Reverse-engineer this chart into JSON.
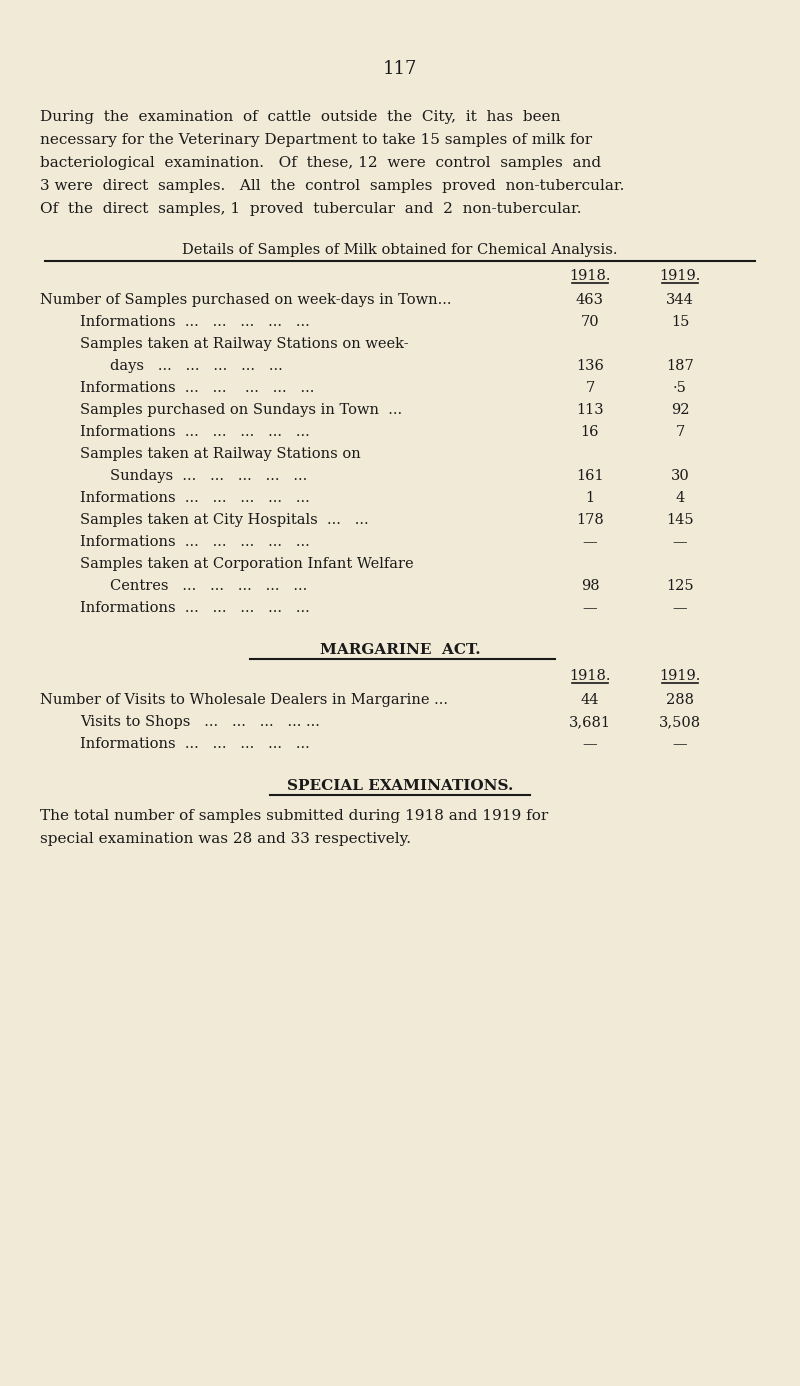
{
  "bg_color": "#f0ead6",
  "text_color": "#1a1a1a",
  "page_number": "117",
  "intro_text": [
    "During  the  examination  of  cattle  outside  the  City,  it  has  been",
    "necessary for the Veterinary Department to take 15 samples of milk for",
    "bacteriological  examination.   Of  these, 12  were  control  samples  and",
    "3 were  direct  samples.   All  the  control  samples  proved  non-tubercular.",
    "Of  the  direct  samples, 1  proved  tubercular  and  2  non-tubercular."
  ],
  "table1_title": "Details of Samples of Milk obtained for Chemical Analysis.",
  "table1_col_headers": [
    "1918.",
    "1919."
  ],
  "table1_rows": [
    {
      "label": "Number of Samples purchased on week-days in Town...",
      "indent": 0,
      "v1918": "463",
      "v1919": "344"
    },
    {
      "label": "Informations  ...   ...   ...   ...   ...",
      "indent": 1,
      "v1918": "70",
      "v1919": "15"
    },
    {
      "label": "Samples taken at Railway Stations on week-",
      "indent": 1,
      "v1918": "",
      "v1919": ""
    },
    {
      "label": "days   ...   ...   ...   ...   ...",
      "indent": 2,
      "v1918": "136",
      "v1919": "187"
    },
    {
      "label": "Informations  ...   ...    ...   ...   ...",
      "indent": 1,
      "v1918": "7",
      "v1919": "·5"
    },
    {
      "label": "Samples purchased on Sundays in Town  ...",
      "indent": 1,
      "v1918": "113",
      "v1919": "92"
    },
    {
      "label": "Informations  ...   ...   ...   ...   ...",
      "indent": 1,
      "v1918": "16",
      "v1919": "7"
    },
    {
      "label": "Samples taken at Railway Stations on",
      "indent": 1,
      "v1918": "",
      "v1919": ""
    },
    {
      "label": "Sundays  ...   ...   ...   ...   ...",
      "indent": 2,
      "v1918": "161",
      "v1919": "30"
    },
    {
      "label": "Informations  ...   ...   ...   ...   ...",
      "indent": 1,
      "v1918": "1",
      "v1919": "4"
    },
    {
      "label": "Samples taken at City Hospitals  ...   ...",
      "indent": 1,
      "v1918": "178",
      "v1919": "145"
    },
    {
      "label": "Informations  ...   ...   ...   ...   ...",
      "indent": 1,
      "v1918": "—",
      "v1919": "—"
    },
    {
      "label": "Samples taken at Corporation Infant Welfare",
      "indent": 1,
      "v1918": "",
      "v1919": ""
    },
    {
      "label": "Centres   ...   ...   ...   ...   ...",
      "indent": 2,
      "v1918": "98",
      "v1919": "125"
    },
    {
      "label": "Informations  ...   ...   ...   ...   ...",
      "indent": 1,
      "v1918": "—",
      "v1919": "—"
    }
  ],
  "table2_title": "MARGARINE  ACT.",
  "table2_col_headers": [
    "1918.",
    "1919."
  ],
  "table2_rows": [
    {
      "label": "Number of Visits to Wholesale Dealers in Margarine ...",
      "indent": 0,
      "v1918": "44",
      "v1919": "288"
    },
    {
      "label": "Visits to Shops   ...   ...   ...   ... ...",
      "indent": 1,
      "v1918": "3,681",
      "v1919": "3,508"
    },
    {
      "label": "Informations  ...   ...   ...   ...   ...",
      "indent": 1,
      "v1918": "—",
      "v1919": "—"
    }
  ],
  "section3_title": "SPECIAL EXAMINATIONS.",
  "section3_text": [
    "The total number of samples submitted during 1918 and 1919 for",
    "special examination was 28 and 33 respectively."
  ]
}
